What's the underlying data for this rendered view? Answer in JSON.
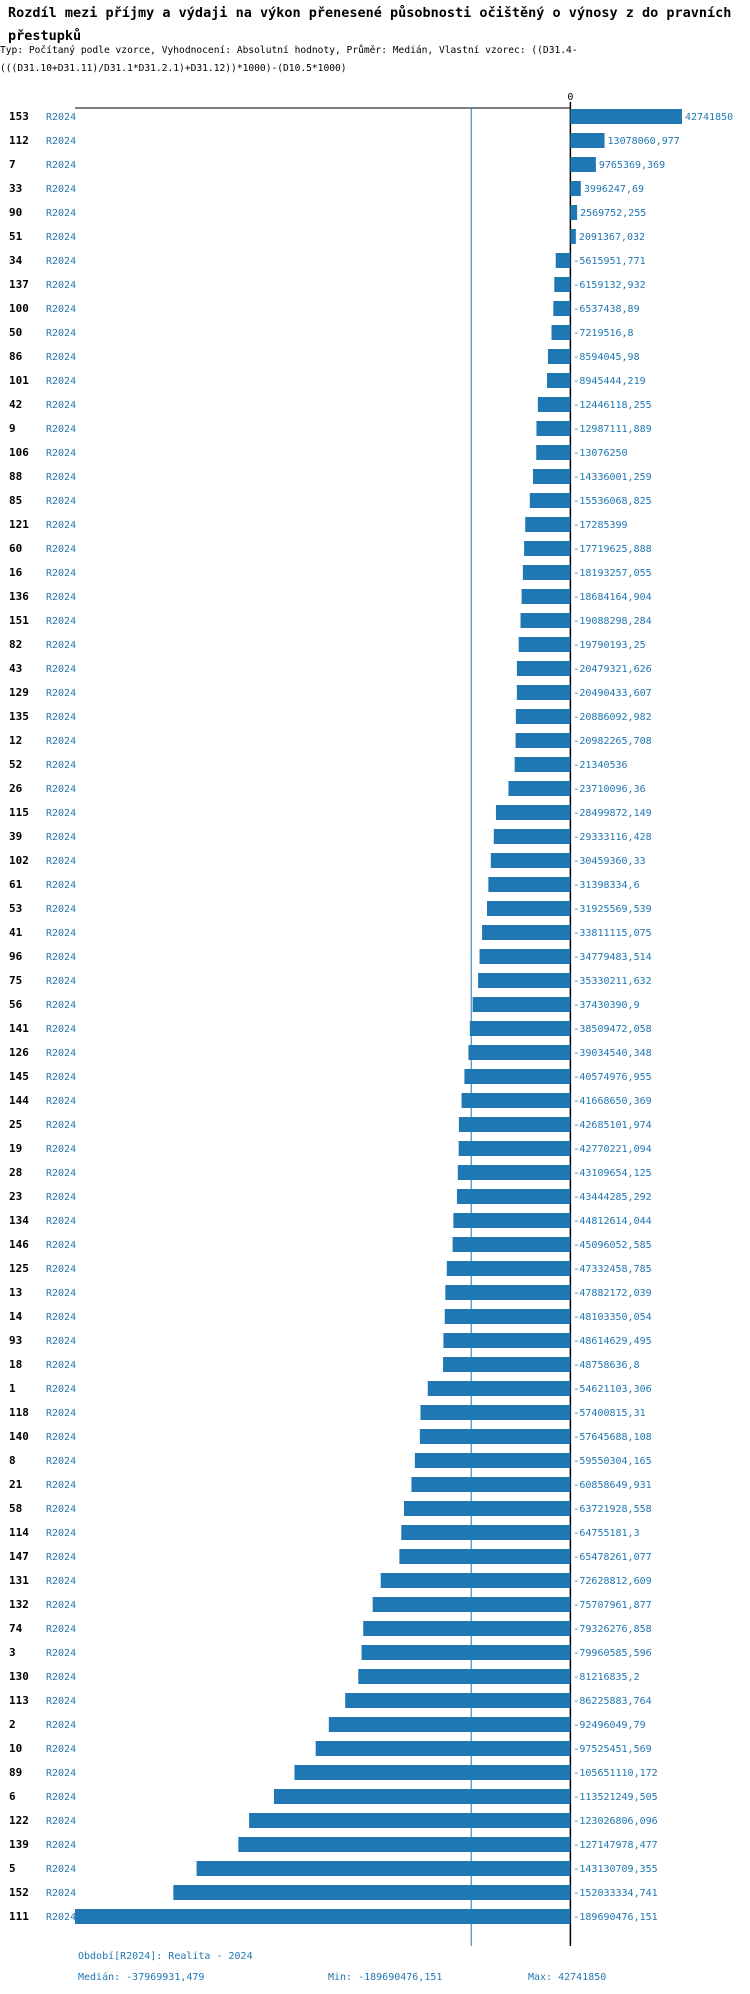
{
  "title": "Rozdíl mezi příjmy a výdaji na výkon přenesené působnosti očištěný o výnosy z do pravních přestupků",
  "subtitle": "Typ: Počítaný podle vzorce, Vyhodnocení: Absolutní hodnoty, Průměr: Medián, Vlastní vzorec: ((D31.4-(((D31.10+D31.11)/D31.1*D31.2.1)+D31.12))*1000)-(D10.5*1000)",
  "colors": {
    "bar": "#1f77b4",
    "text_accent": "#1f77b4",
    "axis": "#000000",
    "median_line": "#1f77b4"
  },
  "chart_data": {
    "type": "bar",
    "orientation": "horizontal",
    "series_label": "R2024",
    "zero_label": "0",
    "median": -37969931.479,
    "categories": [
      "153",
      "112",
      "7",
      "33",
      "90",
      "51",
      "34",
      "137",
      "100",
      "50",
      "86",
      "101",
      "42",
      "9",
      "106",
      "88",
      "85",
      "121",
      "60",
      "16",
      "136",
      "151",
      "82",
      "43",
      "129",
      "135",
      "12",
      "52",
      "26",
      "115",
      "39",
      "102",
      "61",
      "53",
      "41",
      "96",
      "75",
      "56",
      "141",
      "126",
      "145",
      "144",
      "25",
      "19",
      "28",
      "23",
      "134",
      "146",
      "125",
      "13",
      "14",
      "93",
      "18",
      "1",
      "118",
      "140",
      "8",
      "21",
      "58",
      "114",
      "147",
      "131",
      "132",
      "74",
      "3",
      "130",
      "113",
      "2",
      "10",
      "89",
      "6",
      "122",
      "139",
      "5",
      "152",
      "111"
    ],
    "labels": [
      "42741850",
      "13078060,977",
      "9765369,369",
      "3996247,69",
      "2569752,255",
      "2091367,032",
      "-5615951,771",
      "-6159132,932",
      "-6537438,89",
      "-7219516,8",
      "-8594045,98",
      "-8945444,219",
      "-12446118,255",
      "-12987111,889",
      "-13076250",
      "-14336001,259",
      "-15536068,825",
      "-17285399",
      "-17719625,888",
      "-18193257,055",
      "-18684164,904",
      "-19088298,284",
      "-19790193,25",
      "-20479321,626",
      "-20490433,607",
      "-20886092,982",
      "-20982265,708",
      "-21340536",
      "-23710096,36",
      "-28499872,149",
      "-29333116,428",
      "-30459360,33",
      "-31398334,6",
      "-31925569,539",
      "-33811115,075",
      "-34779483,514",
      "-35330211,632",
      "-37430390,9",
      "-38509472,058",
      "-39034540,348",
      "-40574976,955",
      "-41668650,369",
      "-42685101,974",
      "-42770221,094",
      "-43109654,125",
      "-43444285,292",
      "-44812614,044",
      "-45096052,585",
      "-47332458,785",
      "-47882172,039",
      "-48103350,054",
      "-48614629,495",
      "-48758636,8",
      "-54621103,306",
      "-57400815,31",
      "-57645688,108",
      "-59550304,165",
      "-60858649,931",
      "-63721928,558",
      "-64755181,3",
      "-65478261,077",
      "-72628812,609",
      "-75707961,877",
      "-79326276,858",
      "-79960585,596",
      "-81216835,2",
      "-86225883,764",
      "-92496049,79",
      "-97525451,569",
      "-105651110,172",
      "-113521249,505",
      "-123026806,096",
      "-127147978,477",
      "-143130709,355",
      "-152033334,741",
      "-189690476,151"
    ],
    "values": [
      42741850,
      13078060.977,
      9765369.369,
      3996247.69,
      2569752.255,
      2091367.032,
      -5615951.771,
      -6159132.932,
      -6537438.89,
      -7219516.8,
      -8594045.98,
      -8945444.219,
      -12446118.255,
      -12987111.889,
      -13076250,
      -14336001.259,
      -15536068.825,
      -17285399,
      -17719625.888,
      -18193257.055,
      -18684164.904,
      -19088298.284,
      -19790193.25,
      -20479321.626,
      -20490433.607,
      -20886092.982,
      -20982265.708,
      -21340536,
      -23710096.36,
      -28499872.149,
      -29333116.428,
      -30459360.33,
      -31398334.6,
      -31925569.539,
      -33811115.075,
      -34779483.514,
      -35330211.632,
      -37430390.9,
      -38509472.058,
      -39034540.348,
      -40574976.955,
      -41668650.369,
      -42685101.974,
      -42770221.094,
      -43109654.125,
      -43444285.292,
      -44812614.044,
      -45096052.585,
      -47332458.785,
      -47882172.039,
      -48103350.054,
      -48614629.495,
      -48758636.8,
      -54621103.306,
      -57400815.31,
      -57645688.108,
      -59550304.165,
      -60858649.931,
      -63721928.558,
      -64755181.3,
      -65478261.077,
      -72628812.609,
      -75707961.877,
      -79326276.858,
      -79960585.596,
      -81216835.2,
      -86225883.764,
      -92496049.79,
      -97525451.569,
      -105651110.172,
      -113521249.505,
      -123026806.096,
      -127147978.477,
      -143130709.355,
      -152033334.741,
      -189690476.151
    ]
  },
  "footer": {
    "period": "Období[R2024]: Realita - 2024",
    "median": "Medián: -37969931,479",
    "min": "Min: -189690476,151",
    "max": "Max: 42741850"
  }
}
